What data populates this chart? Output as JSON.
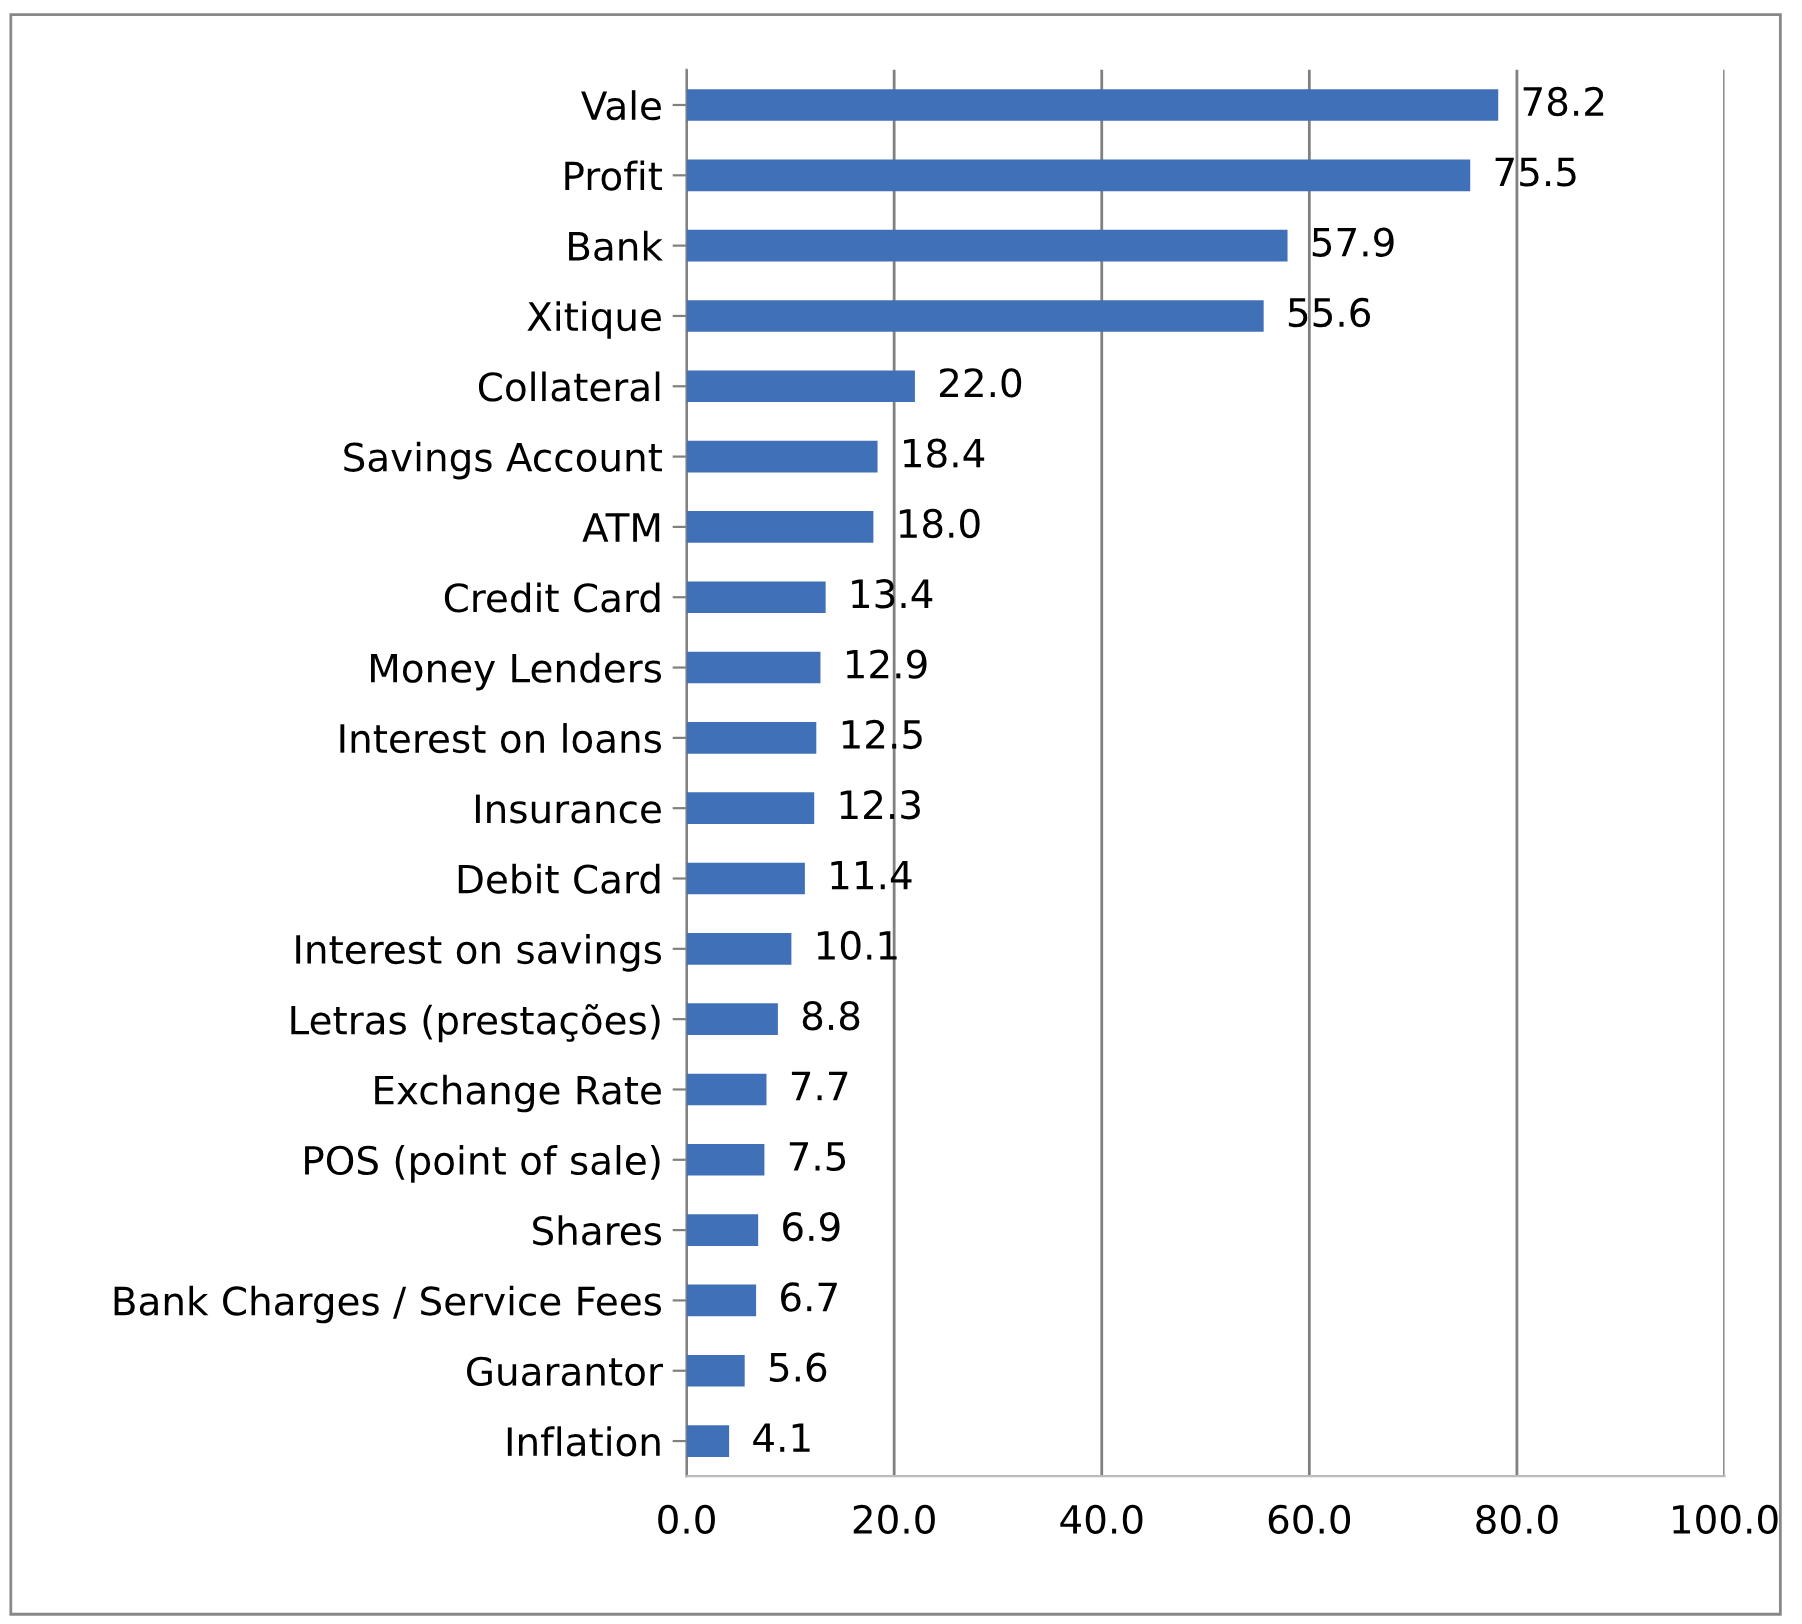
{
  "chart_data": {
    "type": "bar",
    "orientation": "horizontal",
    "categories": [
      "Vale",
      "Profit",
      "Bank",
      "Xitique",
      "Collateral",
      "Savings Account",
      "ATM",
      "Credit Card",
      "Money Lenders",
      "Interest on loans",
      "Insurance",
      "Debit Card",
      "Interest on savings",
      "Letras (prestações)",
      "Exchange Rate",
      "POS (point of sale)",
      "Shares",
      "Bank Charges / Service Fees",
      "Guarantor",
      "Inflation"
    ],
    "values": [
      78.2,
      75.5,
      57.9,
      55.6,
      22.0,
      18.4,
      18.0,
      13.4,
      12.9,
      12.5,
      12.3,
      11.4,
      10.1,
      8.8,
      7.7,
      7.5,
      6.9,
      6.7,
      5.6,
      4.1
    ],
    "value_labels": [
      "78.2",
      "75.5",
      "57.9",
      "55.6",
      "22.0",
      "18.4",
      "18.0",
      "13.4",
      "12.9",
      "12.5",
      "12.3",
      "11.4",
      "10.1",
      "8.8",
      "7.7",
      "7.5",
      "6.9",
      "6.7",
      "5.6",
      "4.1"
    ],
    "color": "#4070b8",
    "xlim": [
      0,
      100
    ],
    "xticks": [
      {
        "value": 0,
        "label": "0.0"
      },
      {
        "value": 20,
        "label": "20.0"
      },
      {
        "value": 40,
        "label": "40.0"
      },
      {
        "value": 60,
        "label": "60.0"
      },
      {
        "value": 80,
        "label": "80.0"
      },
      {
        "value": 100,
        "label": "100.0"
      }
    ],
    "grid": "x",
    "legend": false
  }
}
